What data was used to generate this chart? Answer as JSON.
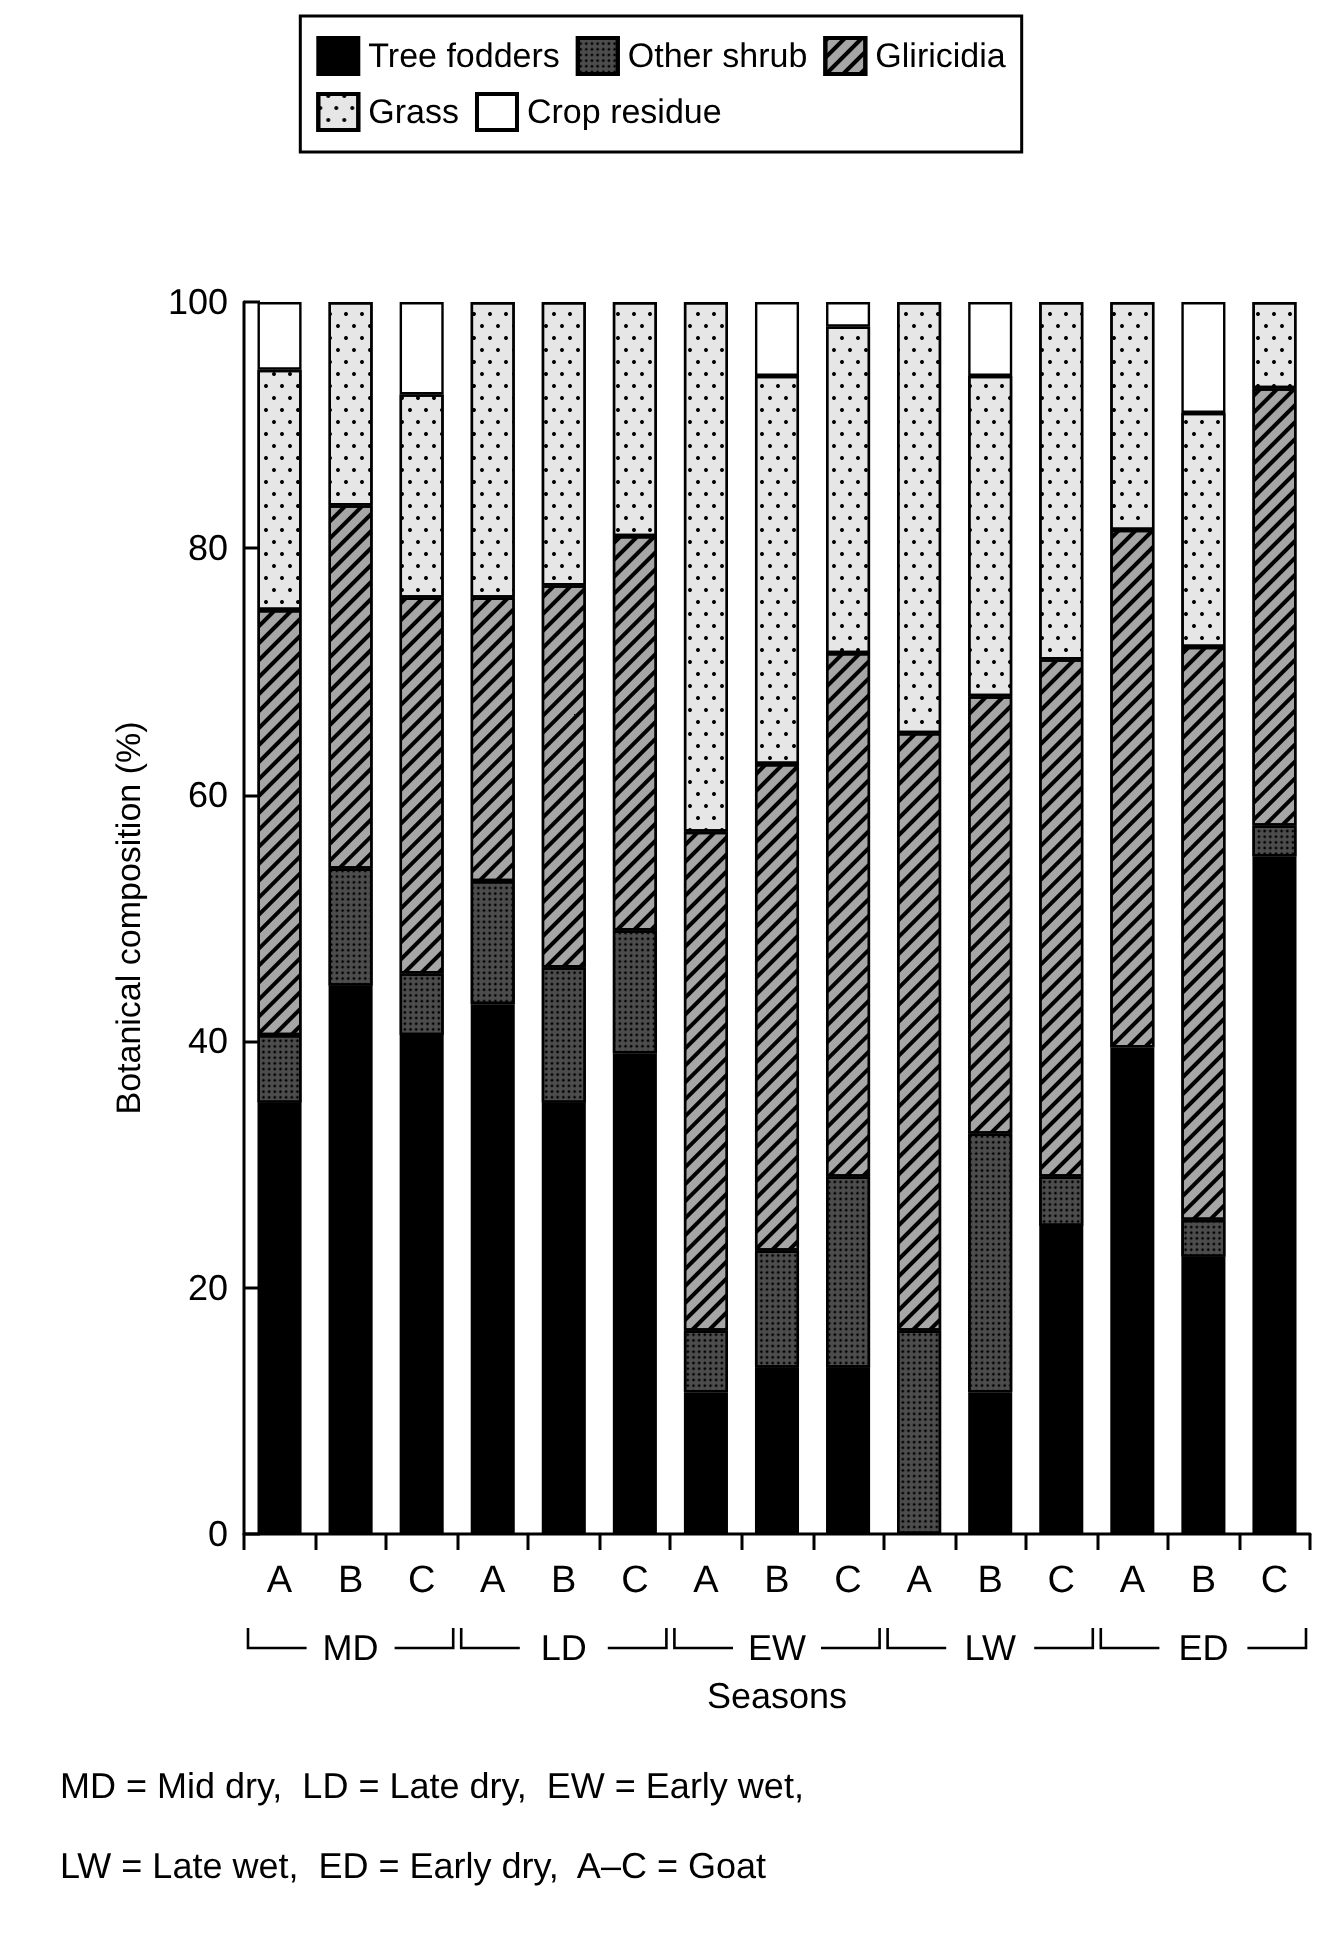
{
  "chart_data": {
    "type": "bar",
    "stacked": true,
    "xlabel": "Seasons",
    "ylabel": "Botanical composition (%)",
    "categories": [
      "A",
      "B",
      "C",
      "A",
      "B",
      "C",
      "A",
      "B",
      "C",
      "A",
      "B",
      "C",
      "A",
      "B",
      "C"
    ],
    "series": [
      {
        "name": "Tree fodders",
        "color": "#000000",
        "values": [
          35,
          44.5,
          40.5,
          43,
          35,
          39,
          11.5,
          13.5,
          13.5,
          0,
          11.5,
          25,
          39.5,
          22.5,
          55
        ]
      },
      {
        "name": "Other shrub",
        "color": "#4d4d4d",
        "values": [
          5.5,
          9.5,
          5,
          10,
          11,
          10,
          5,
          9.5,
          15.5,
          16.5,
          21,
          4,
          0,
          3,
          2.5
        ]
      },
      {
        "name": "Gliricidia",
        "color": "#a6a6a6",
        "values": [
          34.5,
          29.5,
          30.5,
          23,
          31,
          32,
          40.5,
          39.5,
          42.5,
          48.5,
          35.5,
          42,
          42,
          46.5,
          35.5
        ]
      },
      {
        "name": "Grass",
        "color": "#e6e6e6",
        "values": [
          19.5,
          16.5,
          16.5,
          24,
          23,
          19,
          43,
          31.5,
          26.5,
          35,
          26,
          29,
          18.5,
          19,
          7
        ]
      },
      {
        "name": "Crop residue",
        "color": "#ffffff",
        "values": [
          5.5,
          0,
          7.5,
          0,
          0,
          0,
          0,
          6,
          2,
          0,
          6,
          0,
          0,
          9,
          0
        ]
      }
    ],
    "ylim": [
      0,
      100
    ],
    "yticks": [
      0,
      20,
      40,
      60,
      80,
      100
    ],
    "grid": false,
    "legend": "top",
    "annotations": [
      "MD",
      "LD",
      "EW",
      "LW",
      "ED",
      "MD = Mid dry,  LD = Late dry,  EW = Early wet,",
      "LW = Late wet,  ED = Early dry,  A–C = Goat"
    ]
  }
}
